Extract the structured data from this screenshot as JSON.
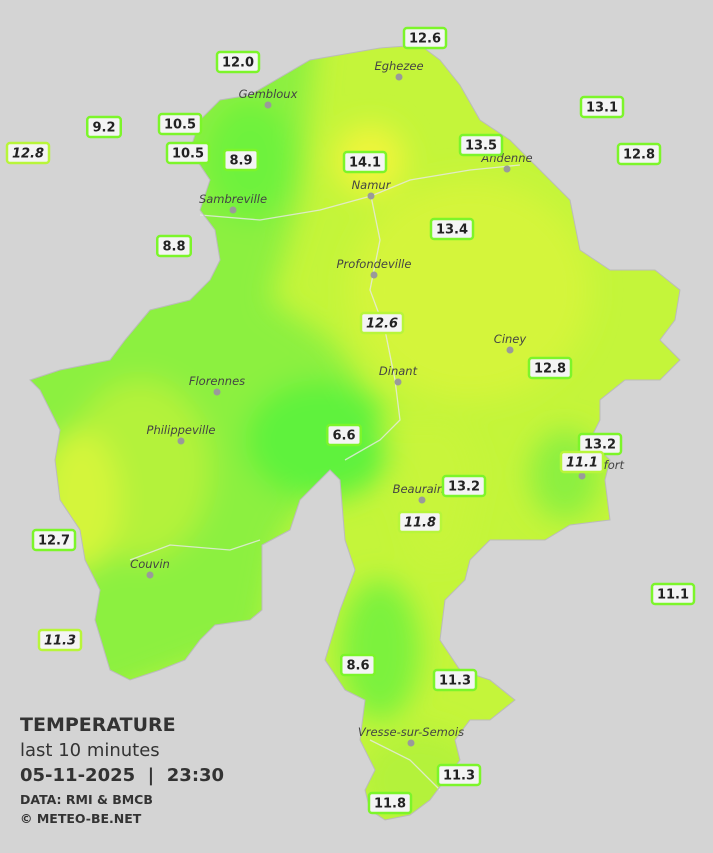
{
  "header": {
    "title": "TEMPERATURE",
    "subtitle": "last 10 minutes",
    "datetime": "05-11-2025  |  23:30",
    "data_source": "DATA: RMI & BMCB",
    "copyright": "© METEO-BE.NET"
  },
  "places": [
    "Eghezee",
    "Gembloux",
    "Andenne",
    "Namur",
    "Sambreville",
    "Profondeville",
    "Ciney",
    "Dinant",
    "Florennes",
    "Philippeville",
    "Beauraing",
    "Rochefort",
    "Couvin",
    "Vresse-sur-Semois"
  ],
  "stations": [
    {
      "label": "12.0",
      "italic": false
    },
    {
      "label": "12.6",
      "italic": false
    },
    {
      "label": "9.2",
      "italic": false
    },
    {
      "label": "10.5",
      "italic": false
    },
    {
      "label": "12.8",
      "italic": true
    },
    {
      "label": "10.5",
      "italic": false
    },
    {
      "label": "8.9",
      "italic": false
    },
    {
      "label": "13.1",
      "italic": false
    },
    {
      "label": "13.5",
      "italic": false
    },
    {
      "label": "12.8",
      "italic": false
    },
    {
      "label": "14.1",
      "italic": false
    },
    {
      "label": "8.8",
      "italic": false
    },
    {
      "label": "13.4",
      "italic": false
    },
    {
      "label": "12.6",
      "italic": true
    },
    {
      "label": "12.8",
      "italic": false
    },
    {
      "label": "6.6",
      "italic": false
    },
    {
      "label": "13.2",
      "italic": false
    },
    {
      "label": "11.1",
      "italic": true
    },
    {
      "label": "13.2",
      "italic": false
    },
    {
      "label": "11.8",
      "italic": true
    },
    {
      "label": "12.7",
      "italic": false
    },
    {
      "label": "11.1",
      "italic": false
    },
    {
      "label": "11.3",
      "italic": true
    },
    {
      "label": "8.6",
      "italic": false
    },
    {
      "label": "11.3",
      "italic": false
    },
    {
      "label": "11.3",
      "italic": false
    },
    {
      "label": "11.8",
      "italic": false
    }
  ]
}
